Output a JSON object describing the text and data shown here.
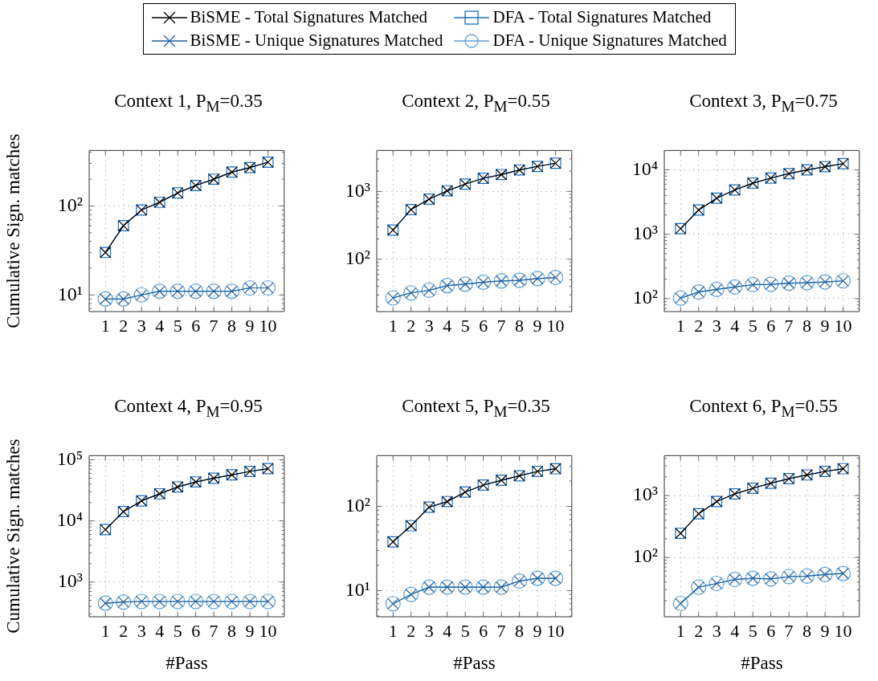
{
  "chart_data": [
    {
      "type": "line",
      "title": "Context 1, P$_{M}$=0.35",
      "ylabel": "Cumulative Sign. matches",
      "legend": "top",
      "grid": true,
      "log": "y",
      "x": [
        1,
        2,
        3,
        4,
        5,
        6,
        7,
        8,
        9,
        10
      ],
      "xlim": [
        0.1,
        10.9
      ],
      "xticks": [
        1,
        2,
        3,
        4,
        5,
        6,
        7,
        8,
        9,
        10
      ],
      "ylim": [
        6.5,
        420
      ],
      "yticks": [
        {
          "value": 7,
          "label": null
        },
        {
          "value": 8,
          "label": null
        },
        {
          "value": 9,
          "label": null
        },
        {
          "value": 10,
          "label": "10¹"
        },
        {
          "value": 20,
          "label": null
        },
        {
          "value": 30,
          "label": null
        },
        {
          "value": 40,
          "label": null
        },
        {
          "value": 50,
          "label": null
        },
        {
          "value": 60,
          "label": null
        },
        {
          "value": 70,
          "label": null
        },
        {
          "value": 80,
          "label": null
        },
        {
          "value": 90,
          "label": null
        },
        {
          "value": 100,
          "label": "10²"
        },
        {
          "value": 200,
          "label": null
        },
        {
          "value": 300,
          "label": null
        },
        {
          "value": 400,
          "label": null
        }
      ],
      "series": [
        {
          "name": "BiSME - Total Signatures Matched",
          "color": "#000000",
          "marker": "cross",
          "values": [
            30,
            60,
            90,
            110,
            140,
            170,
            200,
            240,
            270,
            310
          ]
        },
        {
          "name": "DFA - Total Signatures Matched",
          "color": "#1a6fc2",
          "marker": "square",
          "values": [
            30,
            60,
            90,
            110,
            140,
            170,
            200,
            240,
            270,
            310
          ]
        },
        {
          "name": "BiSME - Unique Signatures Matched",
          "color": "#1f5f9e",
          "marker": "cross",
          "values": [
            9,
            9,
            10,
            11,
            11,
            11,
            11,
            11,
            12,
            12
          ]
        },
        {
          "name": "DFA - Unique Signatures Matched",
          "color": "#5b9fd6",
          "marker": "circle",
          "values": [
            9,
            9,
            10,
            11,
            11,
            11,
            11,
            11,
            12,
            12
          ]
        }
      ]
    },
    {
      "type": "line",
      "title": "Context 2, P$_{M}$=0.55",
      "grid": true,
      "log": "y",
      "x": [
        1,
        2,
        3,
        4,
        5,
        6,
        7,
        8,
        9,
        10
      ],
      "xlim": [
        0.1,
        10.9
      ],
      "xticks": [
        1,
        2,
        3,
        4,
        5,
        6,
        7,
        8,
        9,
        10
      ],
      "ylim": [
        17,
        4000
      ],
      "yticks": [
        {
          "value": 20,
          "label": null
        },
        {
          "value": 30,
          "label": null
        },
        {
          "value": 40,
          "label": null
        },
        {
          "value": 50,
          "label": null
        },
        {
          "value": 60,
          "label": null
        },
        {
          "value": 70,
          "label": null
        },
        {
          "value": 80,
          "label": null
        },
        {
          "value": 90,
          "label": null
        },
        {
          "value": 100,
          "label": "10²"
        },
        {
          "value": 200,
          "label": null
        },
        {
          "value": 300,
          "label": null
        },
        {
          "value": 400,
          "label": null
        },
        {
          "value": 500,
          "label": null
        },
        {
          "value": 600,
          "label": null
        },
        {
          "value": 700,
          "label": null
        },
        {
          "value": 800,
          "label": null
        },
        {
          "value": 900,
          "label": null
        },
        {
          "value": 1000,
          "label": "10³"
        },
        {
          "value": 2000,
          "label": null
        },
        {
          "value": 3000,
          "label": null
        },
        {
          "value": 4000,
          "label": null
        }
      ],
      "series": [
        {
          "color": "#000000",
          "marker": "cross",
          "values": [
            270,
            540,
            770,
            1020,
            1280,
            1560,
            1770,
            2070,
            2330,
            2600
          ]
        },
        {
          "color": "#1a6fc2",
          "marker": "square",
          "values": [
            270,
            540,
            770,
            1020,
            1280,
            1560,
            1770,
            2070,
            2330,
            2600
          ]
        },
        {
          "color": "#1f5f9e",
          "marker": "cross",
          "values": [
            27,
            32,
            35,
            41,
            43,
            46,
            48,
            49,
            52,
            54
          ]
        },
        {
          "color": "#5b9fd6",
          "marker": "circle",
          "values": [
            27,
            32,
            35,
            41,
            43,
            46,
            48,
            49,
            52,
            54
          ]
        }
      ]
    },
    {
      "type": "line",
      "title": "Context 3, P$_{M}$=0.75",
      "grid": true,
      "log": "y",
      "x": [
        1,
        2,
        3,
        4,
        5,
        6,
        7,
        8,
        9,
        10
      ],
      "xlim": [
        0.1,
        10.9
      ],
      "xticks": [
        1,
        2,
        3,
        4,
        5,
        6,
        7,
        8,
        9,
        10
      ],
      "ylim": [
        63,
        20000
      ],
      "yticks": [
        {
          "value": 70,
          "label": null
        },
        {
          "value": 80,
          "label": null
        },
        {
          "value": 90,
          "label": null
        },
        {
          "value": 100,
          "label": "10²"
        },
        {
          "value": 200,
          "label": null
        },
        {
          "value": 300,
          "label": null
        },
        {
          "value": 400,
          "label": null
        },
        {
          "value": 500,
          "label": null
        },
        {
          "value": 600,
          "label": null
        },
        {
          "value": 700,
          "label": null
        },
        {
          "value": 800,
          "label": null
        },
        {
          "value": 900,
          "label": null
        },
        {
          "value": 1000,
          "label": "10³"
        },
        {
          "value": 2000,
          "label": null
        },
        {
          "value": 3000,
          "label": null
        },
        {
          "value": 4000,
          "label": null
        },
        {
          "value": 5000,
          "label": null
        },
        {
          "value": 6000,
          "label": null
        },
        {
          "value": 7000,
          "label": null
        },
        {
          "value": 8000,
          "label": null
        },
        {
          "value": 9000,
          "label": null
        },
        {
          "value": 10000,
          "label": "10⁴"
        }
      ],
      "series": [
        {
          "color": "#000000",
          "marker": "cross",
          "values": [
            1220,
            2380,
            3630,
            4880,
            6220,
            7450,
            8750,
            10000,
            11200,
            12500
          ]
        },
        {
          "color": "#1a6fc2",
          "marker": "square",
          "values": [
            1220,
            2380,
            3630,
            4880,
            6220,
            7450,
            8750,
            10000,
            11200,
            12500
          ]
        },
        {
          "color": "#1f5f9e",
          "marker": "cross",
          "values": [
            102,
            127,
            139,
            152,
            165,
            167,
            174,
            177,
            182,
            189
          ]
        },
        {
          "color": "#5b9fd6",
          "marker": "circle",
          "values": [
            102,
            127,
            139,
            152,
            165,
            167,
            174,
            177,
            182,
            189
          ]
        }
      ]
    },
    {
      "type": "line",
      "title": "Context 4, P$_{M}$=0.95",
      "ylabel": "Cumulative Sign. matches",
      "xlabel": "#Pass",
      "grid": true,
      "log": "y",
      "x": [
        1,
        2,
        3,
        4,
        5,
        6,
        7,
        8,
        9,
        10
      ],
      "xlim": [
        0.1,
        10.9
      ],
      "xticks": [
        1,
        2,
        3,
        4,
        5,
        6,
        7,
        8,
        9,
        10
      ],
      "ylim": [
        270,
        117000
      ],
      "yticks": [
        {
          "value": 300,
          "label": null
        },
        {
          "value": 400,
          "label": null
        },
        {
          "value": 500,
          "label": null
        },
        {
          "value": 600,
          "label": null
        },
        {
          "value": 700,
          "label": null
        },
        {
          "value": 800,
          "label": null
        },
        {
          "value": 900,
          "label": null
        },
        {
          "value": 1000,
          "label": "10³"
        },
        {
          "value": 2000,
          "label": null
        },
        {
          "value": 3000,
          "label": null
        },
        {
          "value": 4000,
          "label": null
        },
        {
          "value": 5000,
          "label": null
        },
        {
          "value": 6000,
          "label": null
        },
        {
          "value": 7000,
          "label": null
        },
        {
          "value": 8000,
          "label": null
        },
        {
          "value": 9000,
          "label": null
        },
        {
          "value": 10000,
          "label": "10⁴"
        },
        {
          "value": 20000,
          "label": null
        },
        {
          "value": 30000,
          "label": null
        },
        {
          "value": 40000,
          "label": null
        },
        {
          "value": 50000,
          "label": null
        },
        {
          "value": 60000,
          "label": null
        },
        {
          "value": 70000,
          "label": null
        },
        {
          "value": 80000,
          "label": null
        },
        {
          "value": 90000,
          "label": null
        },
        {
          "value": 100000,
          "label": "10⁵"
        }
      ],
      "series": [
        {
          "color": "#000000",
          "marker": "cross",
          "values": [
            7200,
            14200,
            21300,
            27800,
            36000,
            43500,
            50100,
            56700,
            64700,
            71800
          ]
        },
        {
          "color": "#1a6fc2",
          "marker": "square",
          "values": [
            7200,
            14200,
            21300,
            27800,
            36000,
            43500,
            50100,
            56700,
            64700,
            71800
          ]
        },
        {
          "color": "#1f5f9e",
          "marker": "cross",
          "values": [
            450,
            470,
            480,
            480,
            480,
            480,
            480,
            480,
            480,
            480
          ]
        },
        {
          "color": "#5b9fd6",
          "marker": "circle",
          "values": [
            450,
            470,
            480,
            480,
            480,
            480,
            480,
            480,
            480,
            480
          ]
        }
      ]
    },
    {
      "type": "line",
      "title": "Context 5, P$_{M}$=0.35",
      "xlabel": "#Pass",
      "grid": true,
      "log": "y",
      "x": [
        1,
        2,
        3,
        4,
        5,
        6,
        7,
        8,
        9,
        10
      ],
      "xlim": [
        0.1,
        10.9
      ],
      "xticks": [
        1,
        2,
        3,
        4,
        5,
        6,
        7,
        8,
        9,
        10
      ],
      "ylim": [
        4.9,
        400
      ],
      "yticks": [
        {
          "value": 5,
          "label": null
        },
        {
          "value": 6,
          "label": null
        },
        {
          "value": 7,
          "label": null
        },
        {
          "value": 8,
          "label": null
        },
        {
          "value": 9,
          "label": null
        },
        {
          "value": 10,
          "label": "10¹"
        },
        {
          "value": 20,
          "label": null
        },
        {
          "value": 30,
          "label": null
        },
        {
          "value": 40,
          "label": null
        },
        {
          "value": 50,
          "label": null
        },
        {
          "value": 60,
          "label": null
        },
        {
          "value": 70,
          "label": null
        },
        {
          "value": 80,
          "label": null
        },
        {
          "value": 90,
          "label": null
        },
        {
          "value": 100,
          "label": "10²"
        },
        {
          "value": 200,
          "label": null
        },
        {
          "value": 300,
          "label": null
        },
        {
          "value": 400,
          "label": null
        }
      ],
      "series": [
        {
          "color": "#000000",
          "marker": "cross",
          "values": [
            38,
            59,
            98,
            114,
            148,
            179,
            204,
            231,
            260,
            280
          ]
        },
        {
          "color": "#1a6fc2",
          "marker": "square",
          "values": [
            38,
            59,
            98,
            114,
            148,
            179,
            204,
            231,
            260,
            280
          ]
        },
        {
          "color": "#1f5f9e",
          "marker": "cross",
          "values": [
            7,
            9,
            11,
            11,
            11,
            11,
            11,
            13,
            14,
            14
          ]
        },
        {
          "color": "#5b9fd6",
          "marker": "circle",
          "values": [
            7,
            9,
            11,
            11,
            11,
            11,
            11,
            13,
            14,
            14
          ]
        }
      ]
    },
    {
      "type": "line",
      "title": "Context 6, P$_{M}$=0.55",
      "xlabel": "#Pass",
      "grid": true,
      "log": "y",
      "x": [
        1,
        2,
        3,
        4,
        5,
        6,
        7,
        8,
        9,
        10
      ],
      "xlim": [
        0.1,
        10.9
      ],
      "xticks": [
        1,
        2,
        3,
        4,
        5,
        6,
        7,
        8,
        9,
        10
      ],
      "ylim": [
        11,
        4400
      ],
      "yticks": [
        {
          "value": 20,
          "label": null
        },
        {
          "value": 30,
          "label": null
        },
        {
          "value": 40,
          "label": null
        },
        {
          "value": 50,
          "label": null
        },
        {
          "value": 60,
          "label": null
        },
        {
          "value": 70,
          "label": null
        },
        {
          "value": 80,
          "label": null
        },
        {
          "value": 90,
          "label": null
        },
        {
          "value": 100,
          "label": "10²"
        },
        {
          "value": 200,
          "label": null
        },
        {
          "value": 300,
          "label": null
        },
        {
          "value": 400,
          "label": null
        },
        {
          "value": 500,
          "label": null
        },
        {
          "value": 600,
          "label": null
        },
        {
          "value": 700,
          "label": null
        },
        {
          "value": 800,
          "label": null
        },
        {
          "value": 900,
          "label": null
        },
        {
          "value": 1000,
          "label": "10³"
        },
        {
          "value": 2000,
          "label": null
        },
        {
          "value": 3000,
          "label": null
        },
        {
          "value": 4000,
          "label": null
        }
      ],
      "series": [
        {
          "color": "#000000",
          "marker": "cross",
          "values": [
            245,
            506,
            800,
            1060,
            1310,
            1580,
            1870,
            2150,
            2450,
            2710
          ]
        },
        {
          "color": "#1a6fc2",
          "marker": "square",
          "values": [
            245,
            506,
            800,
            1060,
            1310,
            1580,
            1870,
            2150,
            2450,
            2710
          ]
        },
        {
          "color": "#1f5f9e",
          "marker": "cross",
          "values": [
            18,
            33,
            38,
            44,
            46,
            45,
            49,
            50,
            53,
            55
          ]
        },
        {
          "color": "#5b9fd6",
          "marker": "circle",
          "values": [
            18,
            33,
            38,
            44,
            46,
            45,
            49,
            50,
            53,
            55
          ]
        }
      ]
    }
  ]
}
